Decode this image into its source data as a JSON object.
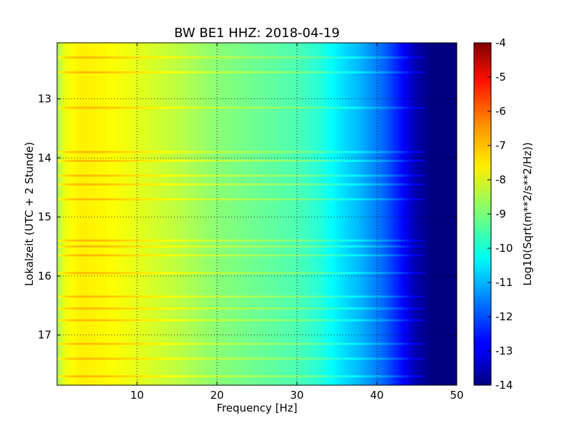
{
  "chart_data": {
    "type": "heatmap",
    "title": "BW BE1 HHZ: 2018-04-19",
    "xlabel": "Frequency [Hz]",
    "ylabel": "Lokalzeit (UTC + 2 Stunde)",
    "xlim": [
      0,
      50
    ],
    "ylim": [
      12.05,
      17.85
    ],
    "y_inverted": true,
    "x_ticks": [
      10,
      20,
      30,
      40,
      50
    ],
    "y_ticks": [
      13,
      14,
      15,
      16,
      17
    ],
    "grid": true,
    "colormap": "jet",
    "colorbar": {
      "label": "Log10(Sqrt(m**2/s**2/Hz))",
      "range": [
        -14,
        -4
      ],
      "ticks": [
        -4,
        -5,
        -6,
        -7,
        -8,
        -9,
        -10,
        -11,
        -12,
        -13,
        -14
      ]
    },
    "frequency_profile": {
      "x": [
        0,
        1,
        3,
        6,
        10,
        15,
        20,
        25,
        30,
        33,
        35,
        38,
        41,
        43,
        45,
        47,
        50
      ],
      "value": [
        -8.6,
        -7.9,
        -7.6,
        -7.7,
        -8.0,
        -8.4,
        -8.9,
        -9.2,
        -9.5,
        -9.9,
        -10.4,
        -11.0,
        -11.8,
        -12.6,
        -13.6,
        -14.0,
        -14.0
      ]
    },
    "bright_bands_hours": [
      12.3,
      12.55,
      13.15,
      13.9,
      14.05,
      14.3,
      14.45,
      14.7,
      15.4,
      15.5,
      15.65,
      15.95,
      16.35,
      16.55,
      16.75,
      17.15,
      17.4,
      17.7
    ]
  }
}
